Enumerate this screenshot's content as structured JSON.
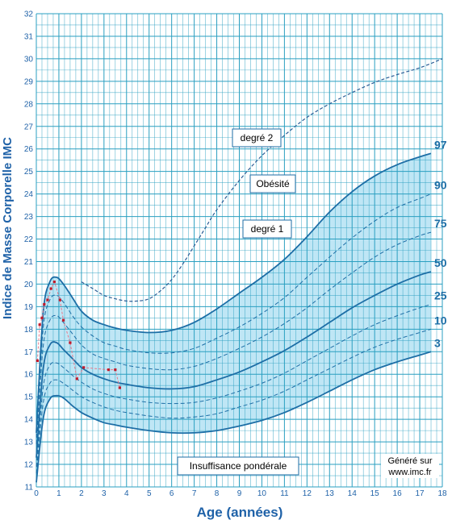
{
  "chart_data": {
    "type": "line",
    "xlabel": "Age (années)",
    "ylabel": "Indice de Masse Corporelle  IMC",
    "xlim": [
      0,
      18
    ],
    "ylim": [
      11,
      32
    ],
    "x_ticks": [
      0,
      1,
      2,
      3,
      4,
      5,
      6,
      7,
      8,
      9,
      10,
      11,
      12,
      13,
      14,
      15,
      16,
      17,
      18
    ],
    "y_ticks": [
      11,
      12,
      13,
      14,
      15,
      16,
      17,
      18,
      19,
      20,
      21,
      22,
      23,
      24,
      25,
      26,
      27,
      28,
      29,
      30,
      31,
      32
    ],
    "grid": true,
    "colors": {
      "grid": "#2a9fc0",
      "background": "#ffffff",
      "band": "#bfe6f5",
      "curve": "#1d6ea6",
      "dashed": "#2a5c95",
      "label": "#1f62a8",
      "patient": "#c01a2a",
      "patient_line": "#e8788a"
    },
    "percentile_curves": [
      {
        "name": "97",
        "x": [
          0,
          0.3,
          0.6,
          0.9,
          1.2,
          1.6,
          2,
          2.5,
          3,
          3.5,
          4,
          5,
          6,
          7,
          8,
          9,
          10,
          11,
          12,
          13,
          14,
          15,
          16,
          17,
          17.5
        ],
        "y": [
          13.4,
          18.7,
          20.1,
          20.3,
          20.0,
          19.4,
          18.8,
          18.4,
          18.2,
          18.05,
          17.95,
          17.85,
          17.95,
          18.3,
          18.9,
          19.6,
          20.3,
          21.1,
          22.1,
          23.2,
          24.1,
          24.8,
          25.3,
          25.65,
          25.8
        ]
      },
      {
        "name": "90",
        "x": [
          0,
          0.3,
          0.6,
          0.9,
          1.2,
          1.6,
          2,
          2.5,
          3,
          3.5,
          4,
          5,
          6,
          7,
          8,
          9,
          10,
          11,
          12,
          13,
          14,
          15,
          16,
          17,
          17.5
        ],
        "y": [
          13.2,
          18.0,
          19.3,
          19.5,
          19.2,
          18.6,
          18.1,
          17.7,
          17.4,
          17.25,
          17.1,
          16.95,
          16.95,
          17.15,
          17.6,
          18.1,
          18.7,
          19.4,
          20.3,
          21.2,
          22.05,
          22.8,
          23.4,
          23.8,
          24.0
        ]
      },
      {
        "name": "75",
        "x": [
          0,
          0.3,
          0.6,
          0.9,
          1.2,
          1.6,
          2,
          2.5,
          3,
          3.5,
          4,
          5,
          6,
          7,
          8,
          9,
          10,
          11,
          12,
          13,
          14,
          15,
          16,
          17,
          17.5
        ],
        "y": [
          12.9,
          17.2,
          18.4,
          18.6,
          18.3,
          17.8,
          17.3,
          16.9,
          16.7,
          16.55,
          16.4,
          16.25,
          16.2,
          16.35,
          16.7,
          17.15,
          17.65,
          18.25,
          18.95,
          19.75,
          20.5,
          21.2,
          21.75,
          22.15,
          22.3
        ]
      },
      {
        "name": "50",
        "x": [
          0,
          0.3,
          0.6,
          0.9,
          1.2,
          1.6,
          2,
          2.5,
          3,
          3.5,
          4,
          5,
          6,
          7,
          8,
          9,
          10,
          11,
          12,
          13,
          14,
          15,
          16,
          17,
          17.5
        ],
        "y": [
          12.3,
          16.2,
          17.3,
          17.4,
          17.1,
          16.7,
          16.3,
          16.0,
          15.8,
          15.65,
          15.55,
          15.4,
          15.35,
          15.45,
          15.75,
          16.1,
          16.55,
          17.05,
          17.65,
          18.3,
          18.95,
          19.5,
          20.0,
          20.4,
          20.55
        ]
      },
      {
        "name": "25",
        "x": [
          0,
          0.3,
          0.6,
          0.9,
          1.2,
          1.6,
          2,
          2.5,
          3,
          3.5,
          4,
          5,
          6,
          7,
          8,
          9,
          10,
          11,
          12,
          13,
          14,
          15,
          16,
          17,
          17.5
        ],
        "y": [
          11.9,
          15.4,
          16.4,
          16.5,
          16.3,
          15.95,
          15.65,
          15.35,
          15.15,
          15.0,
          14.9,
          14.75,
          14.7,
          14.75,
          14.95,
          15.25,
          15.6,
          16.05,
          16.6,
          17.15,
          17.7,
          18.2,
          18.6,
          18.95,
          19.1
        ]
      },
      {
        "name": "10",
        "x": [
          0,
          0.3,
          0.6,
          0.9,
          1.2,
          1.6,
          2,
          2.5,
          3,
          3.5,
          4,
          5,
          6,
          7,
          8,
          9,
          10,
          11,
          12,
          13,
          14,
          15,
          16,
          17,
          17.5
        ],
        "y": [
          11.6,
          14.7,
          15.6,
          15.75,
          15.6,
          15.3,
          15.0,
          14.75,
          14.55,
          14.4,
          14.3,
          14.15,
          14.05,
          14.1,
          14.25,
          14.55,
          14.85,
          15.25,
          15.75,
          16.25,
          16.75,
          17.2,
          17.55,
          17.85,
          18.0
        ]
      },
      {
        "name": "3",
        "x": [
          0,
          0.3,
          0.6,
          0.9,
          1.2,
          1.6,
          2,
          2.5,
          3,
          3.5,
          4,
          5,
          6,
          7,
          8,
          9,
          10,
          11,
          12,
          13,
          14,
          15,
          16,
          17,
          17.5
        ],
        "y": [
          11.2,
          14.0,
          14.9,
          15.05,
          14.95,
          14.6,
          14.3,
          14.05,
          13.85,
          13.75,
          13.65,
          13.5,
          13.4,
          13.4,
          13.5,
          13.7,
          13.95,
          14.3,
          14.75,
          15.25,
          15.75,
          16.2,
          16.55,
          16.85,
          17.0
        ]
      }
    ],
    "obesity_grade2_curve": {
      "x": [
        2,
        2.5,
        3,
        3.5,
        4,
        4.5,
        5,
        5.5,
        6,
        6.5,
        7,
        7.5,
        8,
        9,
        10,
        11,
        12,
        13,
        14,
        15,
        16,
        17,
        18
      ],
      "y": [
        20.1,
        19.8,
        19.5,
        19.35,
        19.25,
        19.25,
        19.35,
        19.7,
        20.2,
        20.9,
        21.7,
        22.5,
        23.3,
        24.6,
        25.7,
        26.6,
        27.4,
        28.0,
        28.5,
        28.95,
        29.3,
        29.6,
        30.0
      ]
    },
    "patient": {
      "x": [
        0.05,
        0.15,
        0.25,
        0.35,
        0.5,
        0.65,
        0.8,
        1.05,
        1.2,
        1.5,
        1.8,
        2.1,
        3.2,
        3.5,
        3.7
      ],
      "y": [
        16.6,
        18.2,
        18.5,
        19.1,
        19.3,
        19.8,
        20.1,
        19.3,
        18.4,
        17.4,
        15.8,
        16.3,
        16.2,
        16.2,
        15.4
      ]
    },
    "annotations": {
      "degre2": "degré 2",
      "obesite": "Obésité",
      "degre1": "degré 1",
      "insuffisance": "Insuffisance pondérale",
      "genere_line1": "Généré sur",
      "genere_line2": "www.imc.fr"
    }
  }
}
